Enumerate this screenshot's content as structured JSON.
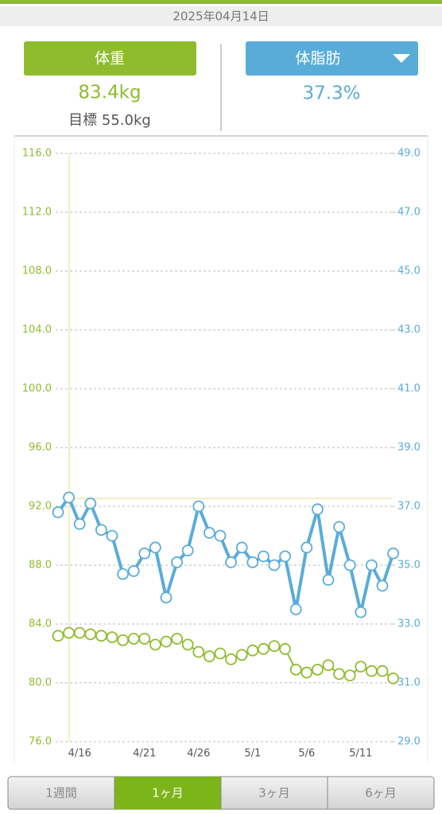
{
  "header": {
    "date": "2025年04月14日"
  },
  "weight_panel": {
    "label": "体重",
    "value": "83.4kg",
    "goal": "目標 55.0kg"
  },
  "fat_panel": {
    "label": "体脂肪",
    "value": "37.3%"
  },
  "chart_data": {
    "type": "line",
    "categories": [
      null,
      null,
      "4/16",
      null,
      null,
      null,
      null,
      null,
      "4/21",
      null,
      null,
      null,
      null,
      "4/26",
      null,
      null,
      null,
      null,
      "5/1",
      null,
      null,
      null,
      null,
      "5/6",
      null,
      null,
      null,
      null,
      "5/11",
      null,
      null,
      null
    ],
    "series": [
      {
        "name": "体重",
        "color": "#8fbc2f",
        "axis": "y",
        "values": [
          83.2,
          83.4,
          83.4,
          83.3,
          83.2,
          83.1,
          82.9,
          83.0,
          83.0,
          82.6,
          82.8,
          83.0,
          82.6,
          82.1,
          81.8,
          82.0,
          81.6,
          81.9,
          82.2,
          82.3,
          82.5,
          82.3,
          80.9,
          80.7,
          80.9,
          81.2,
          80.6,
          80.5,
          81.1,
          80.8,
          80.8,
          80.3
        ]
      },
      {
        "name": "体脂肪",
        "color": "#5aacd8",
        "axis": "y2",
        "values": [
          36.8,
          37.3,
          36.4,
          37.1,
          36.2,
          36.0,
          34.7,
          34.8,
          35.4,
          35.6,
          33.9,
          35.1,
          35.5,
          37.0,
          36.1,
          36.0,
          35.1,
          35.6,
          35.1,
          35.3,
          35.0,
          35.3,
          33.5,
          35.6,
          36.9,
          34.5,
          36.3,
          35.0,
          33.4,
          35.0,
          34.3,
          35.4
        ]
      }
    ],
    "ylim": [
      76,
      116
    ],
    "yticks": [
      {
        "value": 76,
        "label": "76.0"
      },
      {
        "value": 80,
        "label": "80.0"
      },
      {
        "value": 84,
        "label": "84.0"
      },
      {
        "value": 88,
        "label": "88.0"
      },
      {
        "value": 92,
        "label": "92.0"
      },
      {
        "value": 96,
        "label": "96.0"
      },
      {
        "value": 100,
        "label": "100.0"
      },
      {
        "value": 104,
        "label": "104.0"
      },
      {
        "value": 108,
        "label": "108.0"
      },
      {
        "value": 112,
        "label": "112.0"
      },
      {
        "value": 116,
        "label": "116.0"
      }
    ],
    "y2lim": [
      29,
      49
    ],
    "y2ticks": [
      {
        "value": 29,
        "label": "29.0"
      },
      {
        "value": 31,
        "label": "31.0"
      },
      {
        "value": 33,
        "label": "33.0"
      },
      {
        "value": 35,
        "label": "35.0"
      },
      {
        "value": 37,
        "label": "37.0"
      },
      {
        "value": 39,
        "label": "39.0"
      },
      {
        "value": 41,
        "label": "41.0"
      },
      {
        "value": 43,
        "label": "43.0"
      },
      {
        "value": 45,
        "label": "45.0"
      },
      {
        "value": 47,
        "label": "47.0"
      },
      {
        "value": 49,
        "label": "49.0"
      }
    ],
    "grid": true
  },
  "tabs": [
    "1週間",
    "1ヶ月",
    "3ヶ月",
    "6ヶ月"
  ]
}
